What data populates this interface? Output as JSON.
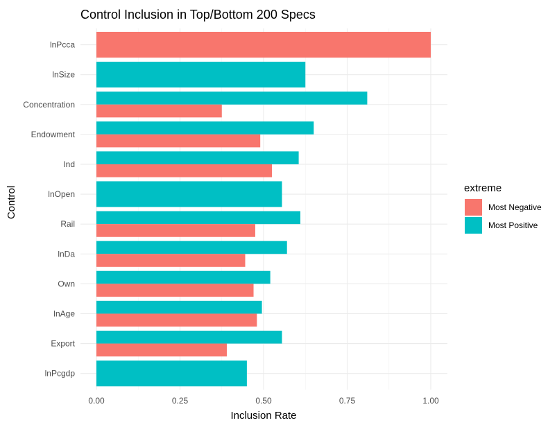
{
  "chart_data": {
    "type": "bar",
    "orientation": "horizontal",
    "title": "Control Inclusion in Top/Bottom 200 Specs",
    "xlabel": "Inclusion Rate",
    "ylabel": "Control",
    "xlim": [
      0,
      1
    ],
    "x_ticks": [
      "0.00",
      "0.25",
      "0.50",
      "0.75",
      "1.00"
    ],
    "grid": true,
    "legend_position": "right",
    "legend": {
      "title": "extreme",
      "items": [
        {
          "label": "Most Negative",
          "color": "#F8766D"
        },
        {
          "label": "Most Positive",
          "color": "#00BFC4"
        }
      ]
    },
    "categories": [
      "lnPcca",
      "lnSize",
      "Concentration",
      "Endowment",
      "Ind",
      "lnOpen",
      "Rail",
      "lnDa",
      "Own",
      "lnAge",
      "Export",
      "lnPcgdp"
    ],
    "series": [
      {
        "name": "Most Negative",
        "color": "#F8766D",
        "values": [
          1.0,
          null,
          0.375,
          0.49,
          0.525,
          null,
          0.475,
          0.445,
          0.47,
          0.48,
          0.39,
          null
        ]
      },
      {
        "name": "Most Positive",
        "color": "#00BFC4",
        "values": [
          null,
          0.625,
          0.81,
          0.65,
          0.605,
          0.555,
          0.61,
          0.57,
          0.52,
          0.495,
          0.555,
          0.45
        ]
      }
    ]
  }
}
